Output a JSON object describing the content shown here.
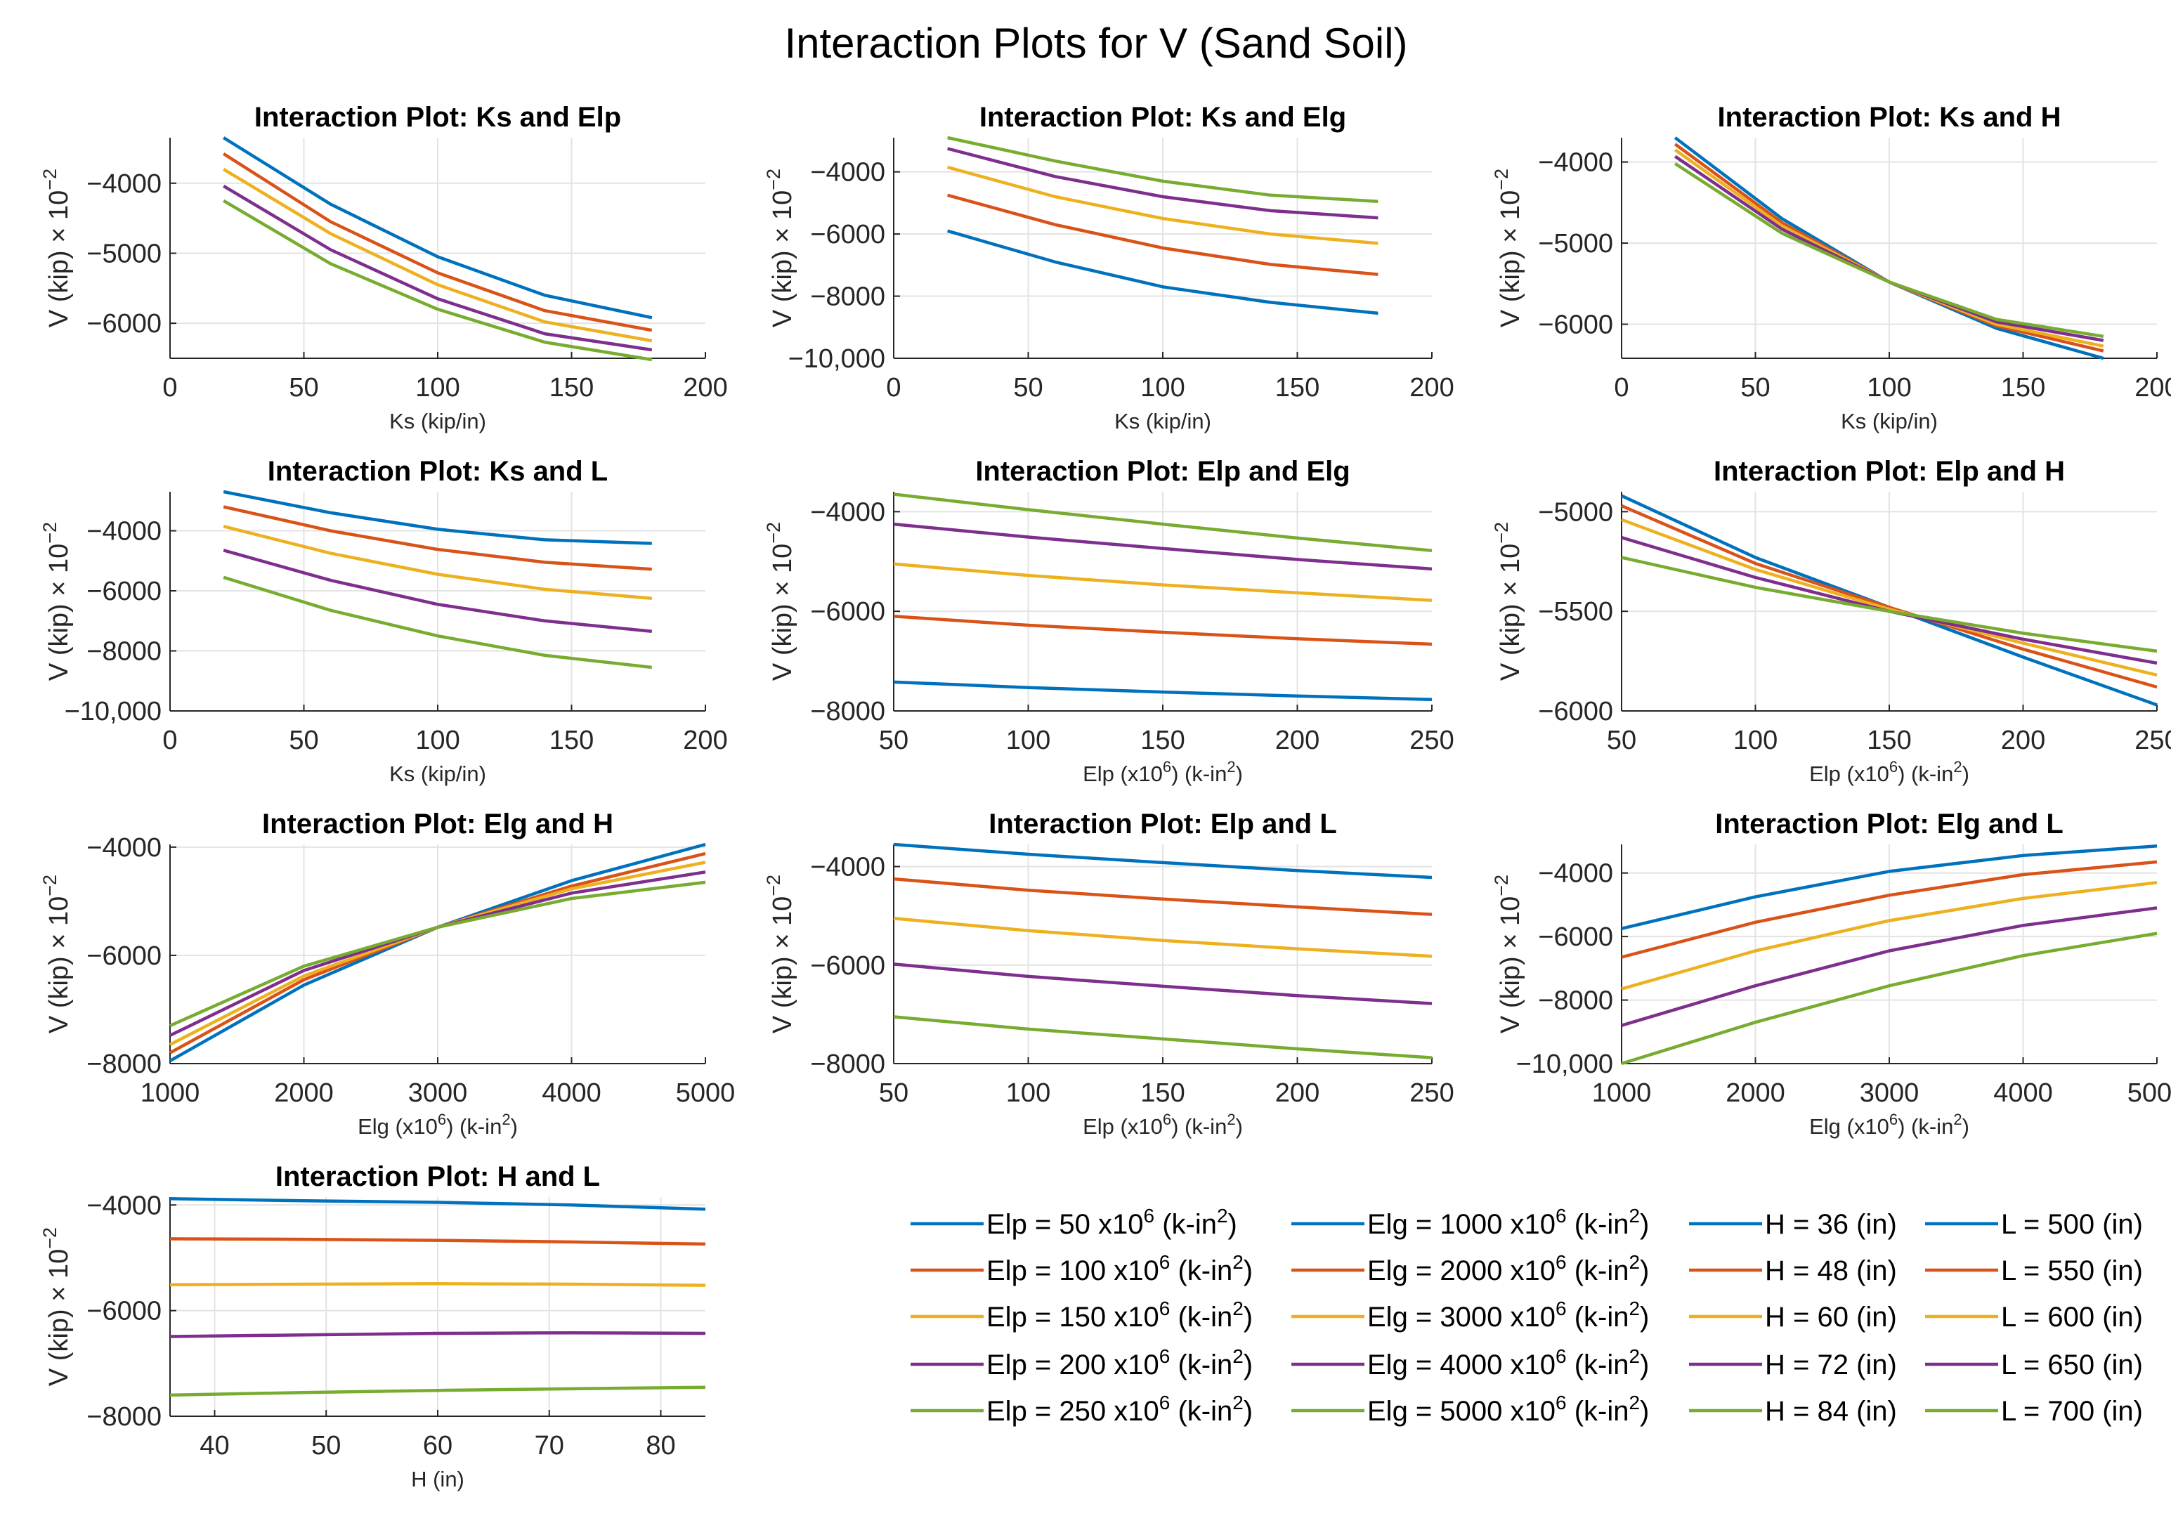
{
  "figure": {
    "title": "Interaction Plots for V (Sand Soil)",
    "colors": [
      "#0072bd",
      "#d95319",
      "#edb120",
      "#7e2f8e",
      "#77ac30"
    ],
    "ylabel_main": "V (kip) × 10",
    "ylabel_exp": "−2"
  },
  "chart_data": [
    {
      "type": "line",
      "title": "Interaction Plot: Ks and Elp",
      "xlabel": "Ks (kip/in)",
      "xlim": [
        0,
        200
      ],
      "ylim": [
        -6500,
        -3350
      ],
      "xticks": [
        0,
        50,
        100,
        150,
        200
      ],
      "yticks": [
        -6000,
        -5000,
        -4000
      ],
      "xtick_labels": [
        "0",
        "50",
        "100",
        "150",
        "200"
      ],
      "ytick_labels": [
        "−6000",
        "−5000",
        "−4000"
      ],
      "x": [
        20,
        60,
        100,
        140,
        180
      ],
      "series": [
        {
          "name": "Elp = 50 x10^6 (k-in^2)",
          "values": [
            -3350,
            -4300,
            -5050,
            -5600,
            -5920
          ]
        },
        {
          "name": "Elp = 100 x10^6 (k-in^2)",
          "values": [
            -3580,
            -4550,
            -5280,
            -5820,
            -6100
          ]
        },
        {
          "name": "Elp = 150 x10^6 (k-in^2)",
          "values": [
            -3800,
            -4720,
            -5450,
            -5980,
            -6250
          ]
        },
        {
          "name": "Elp = 200 x10^6 (k-in^2)",
          "values": [
            -4040,
            -4950,
            -5650,
            -6150,
            -6380
          ]
        },
        {
          "name": "Elp = 250 x10^6 (k-in^2)",
          "values": [
            -4250,
            -5150,
            -5800,
            -6270,
            -6520
          ]
        }
      ]
    },
    {
      "type": "line",
      "title": "Interaction Plot: Ks and Elg",
      "xlabel": "Ks (kip/in)",
      "xlim": [
        0,
        200
      ],
      "ylim": [
        -10000,
        -2900
      ],
      "xticks": [
        0,
        50,
        100,
        150,
        200
      ],
      "yticks": [
        -10000,
        -8000,
        -6000,
        -4000
      ],
      "xtick_labels": [
        "0",
        "50",
        "100",
        "150",
        "200"
      ],
      "ytick_labels": [
        "−10,000",
        "−8000",
        "−6000",
        "−4000"
      ],
      "x": [
        20,
        60,
        100,
        140,
        180
      ],
      "series": [
        {
          "name": "Elg = 1000 x10^6 (k-in^2)",
          "values": [
            -5900,
            -6900,
            -7700,
            -8200,
            -8550
          ]
        },
        {
          "name": "Elg = 2000 x10^6 (k-in^2)",
          "values": [
            -4750,
            -5700,
            -6450,
            -6980,
            -7300
          ]
        },
        {
          "name": "Elg = 3000 x10^6 (k-in^2)",
          "values": [
            -3850,
            -4800,
            -5500,
            -6000,
            -6300
          ]
        },
        {
          "name": "Elg = 4000 x10^6 (k-in^2)",
          "values": [
            -3250,
            -4150,
            -4800,
            -5250,
            -5480
          ]
        },
        {
          "name": "Elg = 5000 x10^6 (k-in^2)",
          "values": [
            -2900,
            -3650,
            -4300,
            -4750,
            -4950
          ]
        }
      ]
    },
    {
      "type": "line",
      "title": "Interaction Plot: Ks and H",
      "xlabel": "Ks (kip/in)",
      "xlim": [
        0,
        200
      ],
      "ylim": [
        -6420,
        -3700
      ],
      "xticks": [
        0,
        50,
        100,
        150,
        200
      ],
      "yticks": [
        -6000,
        -5000,
        -4000
      ],
      "xtick_labels": [
        "0",
        "50",
        "100",
        "150",
        "200"
      ],
      "ytick_labels": [
        "−6000",
        "−5000",
        "−4000"
      ],
      "x": [
        20,
        60,
        100,
        140,
        180
      ],
      "series": [
        {
          "name": "H = 36 (in)",
          "values": [
            -3700,
            -4700,
            -5480,
            -6050,
            -6420
          ]
        },
        {
          "name": "H = 48 (in)",
          "values": [
            -3780,
            -4750,
            -5480,
            -6020,
            -6330
          ]
        },
        {
          "name": "H = 60 (in)",
          "values": [
            -3850,
            -4790,
            -5480,
            -6000,
            -6270
          ]
        },
        {
          "name": "H = 72 (in)",
          "values": [
            -3930,
            -4830,
            -5480,
            -5970,
            -6200
          ]
        },
        {
          "name": "H = 84 (in)",
          "values": [
            -4020,
            -4880,
            -5480,
            -5940,
            -6150
          ]
        }
      ]
    },
    {
      "type": "line",
      "title": "Interaction Plot: Ks and L",
      "xlabel": "Ks (kip/in)",
      "xlim": [
        0,
        200
      ],
      "ylim": [
        -10000,
        -2700
      ],
      "xticks": [
        0,
        50,
        100,
        150,
        200
      ],
      "yticks": [
        -10000,
        -8000,
        -6000,
        -4000
      ],
      "xtick_labels": [
        "0",
        "50",
        "100",
        "150",
        "200"
      ],
      "ytick_labels": [
        "−10,000",
        "−8000",
        "−6000",
        "−4000"
      ],
      "x": [
        20,
        60,
        100,
        140,
        180
      ],
      "series": [
        {
          "name": "L = 500 (in)",
          "values": [
            -2700,
            -3400,
            -3950,
            -4300,
            -4420
          ]
        },
        {
          "name": "L = 550 (in)",
          "values": [
            -3200,
            -4000,
            -4620,
            -5050,
            -5280
          ]
        },
        {
          "name": "L = 600 (in)",
          "values": [
            -3850,
            -4750,
            -5450,
            -5950,
            -6250
          ]
        },
        {
          "name": "L = 650 (in)",
          "values": [
            -4650,
            -5650,
            -6450,
            -7000,
            -7350
          ]
        },
        {
          "name": "L = 700 (in)",
          "values": [
            -5550,
            -6650,
            -7500,
            -8150,
            -8550
          ]
        }
      ]
    },
    {
      "type": "line",
      "title": "Interaction Plot: Elp and Elg",
      "xlabel": "Elp (x10^6) (k-in^2)",
      "xlim": [
        50,
        250
      ],
      "ylim": [
        -8000,
        -3600
      ],
      "xticks": [
        50,
        100,
        150,
        200,
        250
      ],
      "yticks": [
        -8000,
        -6000,
        -4000
      ],
      "xtick_labels": [
        "50",
        "100",
        "150",
        "200",
        "250"
      ],
      "ytick_labels": [
        "−8000",
        "−6000",
        "−4000"
      ],
      "x": [
        50,
        100,
        150,
        200,
        250
      ],
      "series": [
        {
          "name": "Elg = 1000 x10^6 (k-in^2)",
          "values": [
            -7420,
            -7530,
            -7620,
            -7700,
            -7770
          ]
        },
        {
          "name": "Elg = 2000 x10^6 (k-in^2)",
          "values": [
            -6100,
            -6280,
            -6420,
            -6550,
            -6660
          ]
        },
        {
          "name": "Elg = 3000 x10^6 (k-in^2)",
          "values": [
            -5050,
            -5280,
            -5470,
            -5630,
            -5780
          ]
        },
        {
          "name": "Elg = 4000 x10^6 (k-in^2)",
          "values": [
            -4250,
            -4510,
            -4740,
            -4960,
            -5150
          ]
        },
        {
          "name": "Elg = 5000 x10^6 (k-in^2)",
          "values": [
            -3650,
            -3960,
            -4250,
            -4530,
            -4780
          ]
        }
      ]
    },
    {
      "type": "line",
      "title": "Interaction Plot: Elp and H",
      "xlabel": "Elp (x10^6) (k-in^2)",
      "xlim": [
        50,
        250
      ],
      "ylim": [
        -6000,
        -4900
      ],
      "xticks": [
        50,
        100,
        150,
        200,
        250
      ],
      "yticks": [
        -6000,
        -5500,
        -5000
      ],
      "xtick_labels": [
        "50",
        "100",
        "150",
        "200",
        "250"
      ],
      "ytick_labels": [
        "−6000",
        "−5500",
        "−5000"
      ],
      "x": [
        50,
        100,
        150,
        200,
        250
      ],
      "series": [
        {
          "name": "H = 36 (in)",
          "values": [
            -4920,
            -5230,
            -5480,
            -5730,
            -5970
          ]
        },
        {
          "name": "H = 48 (in)",
          "values": [
            -4970,
            -5260,
            -5480,
            -5690,
            -5880
          ]
        },
        {
          "name": "H = 60 (in)",
          "values": [
            -5040,
            -5290,
            -5490,
            -5660,
            -5820
          ]
        },
        {
          "name": "H = 72 (in)",
          "values": [
            -5130,
            -5330,
            -5500,
            -5640,
            -5760
          ]
        },
        {
          "name": "H = 84 (in)",
          "values": [
            -5230,
            -5380,
            -5500,
            -5610,
            -5700
          ]
        }
      ]
    },
    {
      "type": "line",
      "title": "Interaction Plot: Elg and H",
      "xlabel": "Elg (x10^6) (k-in^2)",
      "xlim": [
        1000,
        5000
      ],
      "ylim": [
        -8000,
        -3950
      ],
      "xticks": [
        1000,
        2000,
        3000,
        4000,
        5000
      ],
      "yticks": [
        -8000,
        -6000,
        -4000
      ],
      "xtick_labels": [
        "1000",
        "2000",
        "3000",
        "4000",
        "5000"
      ],
      "ytick_labels": [
        "−8000",
        "−6000",
        "−4000"
      ],
      "x": [
        1000,
        2000,
        3000,
        4000,
        5000
      ],
      "series": [
        {
          "name": "H = 36 (in)",
          "values": [
            -7950,
            -6550,
            -5480,
            -4620,
            -3950
          ]
        },
        {
          "name": "H = 48 (in)",
          "values": [
            -7800,
            -6450,
            -5480,
            -4720,
            -4120
          ]
        },
        {
          "name": "H = 60 (in)",
          "values": [
            -7650,
            -6380,
            -5480,
            -4770,
            -4280
          ]
        },
        {
          "name": "H = 72 (in)",
          "values": [
            -7480,
            -6280,
            -5480,
            -4850,
            -4460
          ]
        },
        {
          "name": "H = 84 (in)",
          "values": [
            -7300,
            -6200,
            -5480,
            -4950,
            -4650
          ]
        }
      ]
    },
    {
      "type": "line",
      "title": "Interaction Plot: Elp and L",
      "xlabel": "Elp (x10^6) (k-in^2)",
      "xlim": [
        50,
        250
      ],
      "ylim": [
        -8000,
        -3550
      ],
      "xticks": [
        50,
        100,
        150,
        200,
        250
      ],
      "yticks": [
        -8000,
        -6000,
        -4000
      ],
      "xtick_labels": [
        "50",
        "100",
        "150",
        "200",
        "250"
      ],
      "ytick_labels": [
        "−8000",
        "−6000",
        "−4000"
      ],
      "x": [
        50,
        100,
        150,
        200,
        250
      ],
      "series": [
        {
          "name": "L = 500 (in)",
          "values": [
            -3550,
            -3750,
            -3920,
            -4080,
            -4220
          ]
        },
        {
          "name": "L = 550 (in)",
          "values": [
            -4250,
            -4480,
            -4660,
            -4820,
            -4970
          ]
        },
        {
          "name": "L = 600 (in)",
          "values": [
            -5050,
            -5300,
            -5500,
            -5670,
            -5820
          ]
        },
        {
          "name": "L = 650 (in)",
          "values": [
            -5980,
            -6230,
            -6430,
            -6620,
            -6780
          ]
        },
        {
          "name": "L = 700 (in)",
          "values": [
            -7050,
            -7300,
            -7500,
            -7700,
            -7880
          ]
        }
      ]
    },
    {
      "type": "line",
      "title": "Interaction Plot: Elg and L",
      "xlabel": "Elg (x10^6) (k-in^2)",
      "xlim": [
        1000,
        5000
      ],
      "ylim": [
        -10000,
        -3100
      ],
      "xticks": [
        1000,
        2000,
        3000,
        4000,
        5000
      ],
      "yticks": [
        -10000,
        -8000,
        -6000,
        -4000
      ],
      "xtick_labels": [
        "1000",
        "2000",
        "3000",
        "4000",
        "5000"
      ],
      "ytick_labels": [
        "−10,000",
        "−8000",
        "−6000",
        "−4000"
      ],
      "x": [
        1000,
        2000,
        3000,
        4000,
        5000
      ],
      "series": [
        {
          "name": "L = 500 (in)",
          "values": [
            -5750,
            -4750,
            -3950,
            -3450,
            -3150
          ]
        },
        {
          "name": "L = 550 (in)",
          "values": [
            -6650,
            -5550,
            -4700,
            -4050,
            -3650
          ]
        },
        {
          "name": "L = 600 (in)",
          "values": [
            -7650,
            -6450,
            -5500,
            -4800,
            -4300
          ]
        },
        {
          "name": "L = 650 (in)",
          "values": [
            -8800,
            -7550,
            -6450,
            -5650,
            -5100
          ]
        },
        {
          "name": "L = 700 (in)",
          "values": [
            -10000,
            -8700,
            -7550,
            -6600,
            -5900
          ]
        }
      ]
    },
    {
      "type": "line",
      "title": "Interaction Plot: H and L",
      "xlabel": "H (in)",
      "xlim": [
        36,
        84
      ],
      "ylim": [
        -8000,
        -3850
      ],
      "xticks": [
        40,
        50,
        60,
        70,
        80
      ],
      "yticks": [
        -8000,
        -6000,
        -4000
      ],
      "xtick_labels": [
        "40",
        "50",
        "60",
        "70",
        "80"
      ],
      "ytick_labels": [
        "−8000",
        "−6000",
        "−4000"
      ],
      "x": [
        36,
        48,
        60,
        72,
        84
      ],
      "series": [
        {
          "name": "L = 500 (in)",
          "values": [
            -3880,
            -3920,
            -3950,
            -4000,
            -4080
          ]
        },
        {
          "name": "L = 550 (in)",
          "values": [
            -4640,
            -4650,
            -4670,
            -4700,
            -4740
          ]
        },
        {
          "name": "L = 600 (in)",
          "values": [
            -5510,
            -5500,
            -5490,
            -5500,
            -5520
          ]
        },
        {
          "name": "L = 650 (in)",
          "values": [
            -6490,
            -6460,
            -6430,
            -6420,
            -6430
          ]
        },
        {
          "name": "L = 700 (in)",
          "values": [
            -7600,
            -7550,
            -7510,
            -7480,
            -7450
          ]
        }
      ]
    }
  ],
  "legend": {
    "columns": [
      [
        {
          "pre": "Elp = 50 x10",
          "sup1": "6",
          "mid": " (k-in",
          "sup2": "2",
          "post": ")"
        },
        {
          "pre": "Elp = 100 x10",
          "sup1": "6",
          "mid": " (k-in",
          "sup2": "2",
          "post": ")"
        },
        {
          "pre": "Elp = 150 x10",
          "sup1": "6",
          "mid": " (k-in",
          "sup2": "2",
          "post": ")"
        },
        {
          "pre": "Elp = 200 x10",
          "sup1": "6",
          "mid": " (k-in",
          "sup2": "2",
          "post": ")"
        },
        {
          "pre": "Elp = 250 x10",
          "sup1": "6",
          "mid": " (k-in",
          "sup2": "2",
          "post": ")"
        }
      ],
      [
        {
          "pre": "Elg = 1000 x10",
          "sup1": "6",
          "mid": " (k-in",
          "sup2": "2",
          "post": ")"
        },
        {
          "pre": "Elg = 2000 x10",
          "sup1": "6",
          "mid": " (k-in",
          "sup2": "2",
          "post": ")"
        },
        {
          "pre": "Elg = 3000 x10",
          "sup1": "6",
          "mid": " (k-in",
          "sup2": "2",
          "post": ")"
        },
        {
          "pre": "Elg = 4000 x10",
          "sup1": "6",
          "mid": " (k-in",
          "sup2": "2",
          "post": ")"
        },
        {
          "pre": "Elg = 5000 x10",
          "sup1": "6",
          "mid": " (k-in",
          "sup2": "2",
          "post": ")"
        }
      ],
      [
        {
          "pre": "H = 36 (in)"
        },
        {
          "pre": "H = 48 (in)"
        },
        {
          "pre": "H = 60 (in)"
        },
        {
          "pre": "H = 72 (in)"
        },
        {
          "pre": "H = 84 (in)"
        }
      ],
      [
        {
          "pre": "L = 500 (in)"
        },
        {
          "pre": "L = 550 (in)"
        },
        {
          "pre": "L = 600 (in)"
        },
        {
          "pre": "L = 650 (in)"
        },
        {
          "pre": "L = 700 (in)"
        }
      ]
    ]
  }
}
